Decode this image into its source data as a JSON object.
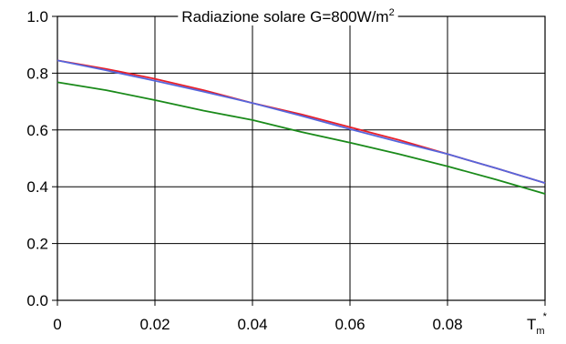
{
  "chart_data": {
    "type": "line",
    "title": "Radiazione solare G=800W/m",
    "title_superscript": "2",
    "xlabel": "T",
    "xlabel_subscript": "m",
    "xlabel_superscript": "*",
    "ylabel": "",
    "xlim": [
      0,
      0.1
    ],
    "ylim": [
      0,
      1.0
    ],
    "x_ticks": [
      0,
      0.02,
      0.04,
      0.06,
      0.08
    ],
    "x_tick_labels": [
      "0",
      "0.02",
      "0.04",
      "0.06",
      "0.08"
    ],
    "y_ticks": [
      0,
      0.2,
      0.4,
      0.6,
      0.8,
      1.0
    ],
    "y_tick_labels": [
      "0.0",
      "0.2",
      "0.4",
      "0.6",
      "0.8",
      "1.0"
    ],
    "grid": true,
    "legend": "none",
    "series": [
      {
        "color": "#e8202a",
        "x": [
          0,
          0.01,
          0.02,
          0.03,
          0.04,
          0.05,
          0.06,
          0.07,
          0.08,
          0.09,
          0.1
        ],
        "values": [
          0.845,
          0.815,
          0.78,
          0.74,
          0.695,
          0.655,
          0.61,
          0.565,
          0.515,
          0.465,
          0.413
        ]
      },
      {
        "color": "#5566dd",
        "x": [
          0,
          0.01,
          0.02,
          0.03,
          0.04,
          0.05,
          0.06,
          0.07,
          0.08,
          0.09,
          0.1
        ],
        "values": [
          0.845,
          0.81,
          0.773,
          0.735,
          0.695,
          0.65,
          0.603,
          0.558,
          0.515,
          0.465,
          0.413
        ]
      },
      {
        "color": "#1a8a1a",
        "x": [
          0,
          0.01,
          0.02,
          0.03,
          0.04,
          0.05,
          0.06,
          0.07,
          0.08,
          0.09,
          0.1
        ],
        "values": [
          0.768,
          0.74,
          0.705,
          0.668,
          0.635,
          0.593,
          0.555,
          0.515,
          0.472,
          0.425,
          0.375
        ]
      }
    ]
  }
}
